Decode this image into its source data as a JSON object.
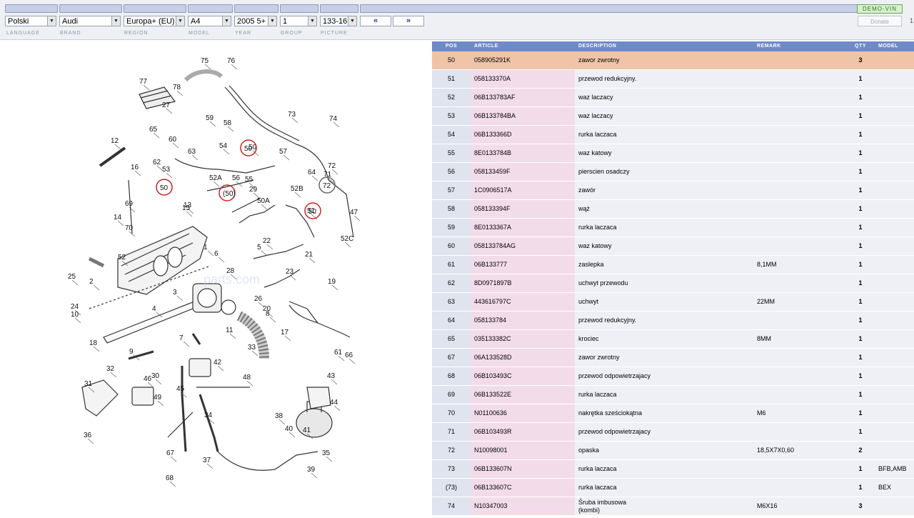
{
  "toolbar": {
    "language": "Polski",
    "brand": "Audi",
    "region": "Europa+ (EU)",
    "model": "A4",
    "year": "2005  5+",
    "group": "1",
    "picture": "133-16",
    "prev_label": "«",
    "next_label": "»",
    "demo_vin": "DEMO-VIN",
    "donate": "Donate",
    "page_fragment": "1",
    "labels": {
      "language": "LANGUAGE",
      "brand": "BRAND",
      "region": "REGION",
      "model": "MODEL",
      "year": "YEAR",
      "group": "GROUP",
      "picture": "PICTURE"
    }
  },
  "table": {
    "headers": {
      "pos": "POS",
      "article": "ARTICLE",
      "description": "DESCRIPTION",
      "remark": "REMARK",
      "qty": "QTY",
      "model": "MODEL"
    },
    "selected_pos": "50",
    "rows": [
      {
        "pos": "50",
        "article": "058905291K",
        "description": "zawor zwrotny",
        "remark": "",
        "qty": "3",
        "model": ""
      },
      {
        "pos": "51",
        "article": "058133370A",
        "description": "przewod redukcyjny.",
        "remark": "",
        "qty": "1",
        "model": ""
      },
      {
        "pos": "52",
        "article": "06B133783AF",
        "description": "waz laczacy",
        "remark": "",
        "qty": "1",
        "model": ""
      },
      {
        "pos": "53",
        "article": "06B133784BA",
        "description": "waz laczacy",
        "remark": "",
        "qty": "1",
        "model": ""
      },
      {
        "pos": "54",
        "article": "06B133366D",
        "description": "rurka laczaca",
        "remark": "",
        "qty": "1",
        "model": ""
      },
      {
        "pos": "55",
        "article": "8E0133784B",
        "description": "waz katowy",
        "remark": "",
        "qty": "1",
        "model": ""
      },
      {
        "pos": "56",
        "article": "058133459F",
        "description": "pierscien osadczy",
        "remark": "",
        "qty": "1",
        "model": ""
      },
      {
        "pos": "57",
        "article": "1C0906517A",
        "description": "zawór",
        "remark": "",
        "qty": "1",
        "model": ""
      },
      {
        "pos": "58",
        "article": "058133394F",
        "description": "wąż",
        "remark": "",
        "qty": "1",
        "model": ""
      },
      {
        "pos": "59",
        "article": "8E0133367A",
        "description": "rurka laczaca",
        "remark": "",
        "qty": "1",
        "model": ""
      },
      {
        "pos": "60",
        "article": "058133784AG",
        "description": "waz katowy",
        "remark": "",
        "qty": "1",
        "model": ""
      },
      {
        "pos": "61",
        "article": "06B133777",
        "description": "zaslepka",
        "remark": "8,1MM",
        "qty": "1",
        "model": ""
      },
      {
        "pos": "62",
        "article": "8D0971897B",
        "description": "uchwyt przewodu",
        "remark": "",
        "qty": "1",
        "model": ""
      },
      {
        "pos": "63",
        "article": "443616797C",
        "description": "uchwyt",
        "remark": "22MM",
        "qty": "1",
        "model": ""
      },
      {
        "pos": "64",
        "article": "058133784",
        "description": "przewod redukcyjny.",
        "remark": "",
        "qty": "1",
        "model": ""
      },
      {
        "pos": "65",
        "article": "035133382C",
        "description": "krociec",
        "remark": "8MM",
        "qty": "1",
        "model": ""
      },
      {
        "pos": "67",
        "article": "06A133528D",
        "description": "zawor zwrotny",
        "remark": "",
        "qty": "1",
        "model": ""
      },
      {
        "pos": "68",
        "article": "06B103493C",
        "description": "przewod odpowietrzajacy",
        "remark": "",
        "qty": "1",
        "model": ""
      },
      {
        "pos": "69",
        "article": "06B133522E",
        "description": "rurka laczaca",
        "remark": "",
        "qty": "1",
        "model": ""
      },
      {
        "pos": "70",
        "article": "N01100636",
        "description": "nakrętka sześciokątna",
        "remark": "M6",
        "qty": "1",
        "model": ""
      },
      {
        "pos": "71",
        "article": "06B103493R",
        "description": "przewod odpowietrzajacy",
        "remark": "",
        "qty": "1",
        "model": ""
      },
      {
        "pos": "72",
        "article": "N10098001",
        "description": "opaska",
        "remark": "18,5X7X0,60",
        "qty": "2",
        "model": ""
      },
      {
        "pos": "73",
        "article": "06B133607N",
        "description": "rurka laczaca",
        "remark": "",
        "qty": "1",
        "model": "BFB,AMB"
      },
      {
        "pos": "(73)",
        "article": "06B133607C",
        "description": "rurka laczaca",
        "remark": "",
        "qty": "1",
        "model": "BEX"
      },
      {
        "pos": "74",
        "article": "N10347003",
        "description": "Śruba imbusowa\n(kombi)",
        "remark": "M6X16",
        "qty": "3",
        "model": ""
      }
    ]
  },
  "diagram": {
    "callouts": [
      "75",
      "76",
      "77",
      "78",
      "27",
      "59",
      "58",
      "73",
      "74",
      "12",
      "65",
      "60",
      "63",
      "62",
      "54",
      "57",
      "50",
      "64",
      "72",
      "71",
      "16",
      "53",
      "52A",
      "55",
      "56",
      "29",
      "52B",
      "51",
      "47",
      "69",
      "13",
      "50A",
      "52C",
      "70",
      "14",
      "15",
      "52",
      "1",
      "6",
      "5",
      "22",
      "21",
      "28",
      "23",
      "19",
      "25",
      "2",
      "3",
      "4",
      "8",
      "20",
      "26",
      "24",
      "10",
      "11",
      "17",
      "18",
      "9",
      "33",
      "7",
      "42",
      "31",
      "32",
      "30",
      "49",
      "34",
      "35",
      "36",
      "37",
      "38",
      "39",
      "40",
      "41",
      "43",
      "44",
      "45",
      "46",
      "48",
      "61",
      "66",
      "67",
      "68"
    ],
    "circled": [
      "50",
      "(50)",
      "72"
    ],
    "watermark": "parts.com"
  },
  "colors": {
    "header_blue": "#6f8bc7",
    "selected_row": "#f0c4a8",
    "article_pink": "#f3dcea",
    "row_gray": "#eef0f5",
    "callout_red": "#cc2222"
  }
}
